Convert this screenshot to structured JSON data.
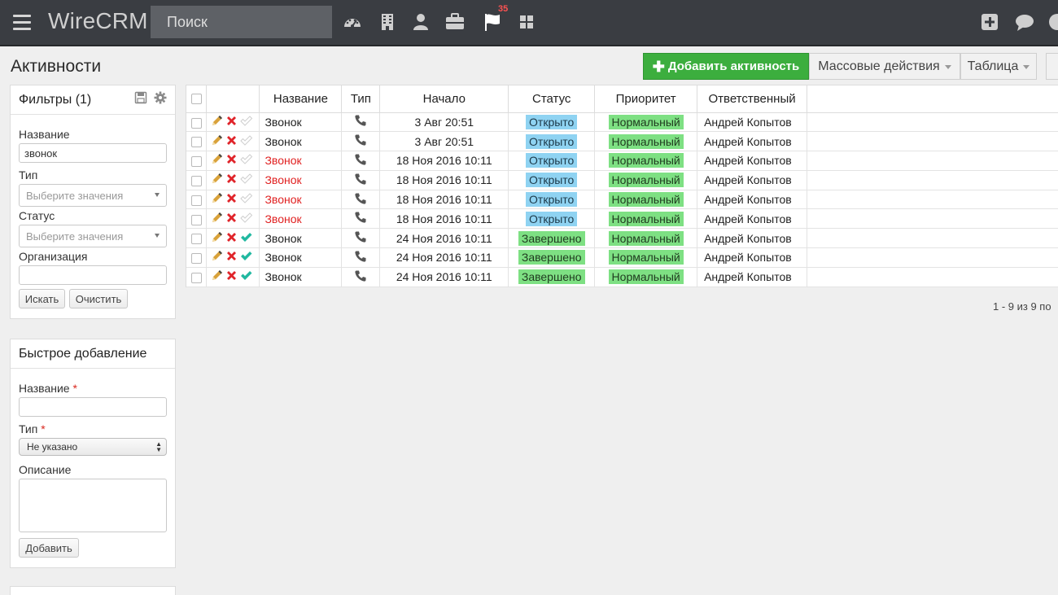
{
  "app": {
    "brand": "WireCRM",
    "search_placeholder": "Поиск"
  },
  "nav": {
    "icons": [
      "dashboard-icon",
      "building-icon",
      "person-icon",
      "briefcase-icon",
      "flag-icon",
      "grid-icon",
      "plus-square-icon",
      "chat-icon"
    ],
    "flag_badge": "35"
  },
  "page": {
    "title": "Активности",
    "add_button": "Добавить активность",
    "mass_actions": "Массовые действия",
    "view_table": "Таблица"
  },
  "filters": {
    "title": "Фильтры (1)",
    "name_label": "Название",
    "name_value": "звонок",
    "type_label": "Тип",
    "type_placeholder": "Выберите значения",
    "status_label": "Статус",
    "status_placeholder": "Выберите значения",
    "org_label": "Организация",
    "search_button": "Искать",
    "clear_button": "Очистить"
  },
  "quick_add": {
    "title": "Быстрое добавление",
    "name_label": "Название",
    "type_label": "Тип",
    "type_value": "Не указано",
    "desc_label": "Описание",
    "add_button": "Добавить",
    "required_mark": "*"
  },
  "table": {
    "columns": [
      "Название",
      "Тип",
      "Начало",
      "Статус",
      "Приоритет",
      "Ответственный"
    ],
    "rows": [
      {
        "name": "Звонок",
        "overdue": false,
        "start": "3 Авг 20:51",
        "status": "Открыто",
        "priority": "Нормальный",
        "owner": "Андрей Копытов",
        "done": false
      },
      {
        "name": "Звонок",
        "overdue": false,
        "start": "3 Авг 20:51",
        "status": "Открыто",
        "priority": "Нормальный",
        "owner": "Андрей Копытов",
        "done": false
      },
      {
        "name": "Звонок",
        "overdue": true,
        "start": "18 Ноя 2016 10:11",
        "status": "Открыто",
        "priority": "Нормальный",
        "owner": "Андрей Копытов",
        "done": false
      },
      {
        "name": "Звонок",
        "overdue": true,
        "start": "18 Ноя 2016 10:11",
        "status": "Открыто",
        "priority": "Нормальный",
        "owner": "Андрей Копытов",
        "done": false
      },
      {
        "name": "Звонок",
        "overdue": true,
        "start": "18 Ноя 2016 10:11",
        "status": "Открыто",
        "priority": "Нормальный",
        "owner": "Андрей Копытов",
        "done": false
      },
      {
        "name": "Звонок",
        "overdue": true,
        "start": "18 Ноя 2016 10:11",
        "status": "Открыто",
        "priority": "Нормальный",
        "owner": "Андрей Копытов",
        "done": false
      },
      {
        "name": "Звонок",
        "overdue": false,
        "start": "24 Ноя 2016 10:11",
        "status": "Завершено",
        "priority": "Нормальный",
        "owner": "Андрей Копытов",
        "done": true
      },
      {
        "name": "Звонок",
        "overdue": false,
        "start": "24 Ноя 2016 10:11",
        "status": "Завершено",
        "priority": "Нормальный",
        "owner": "Андрей Копытов",
        "done": true
      },
      {
        "name": "Звонок",
        "overdue": false,
        "start": "24 Ноя 2016 10:11",
        "status": "Завершено",
        "priority": "Нормальный",
        "owner": "Андрей Копытов",
        "done": true
      }
    ],
    "pager": "1 - 9 из 9 по"
  },
  "colors": {
    "accent_green": "#3cae3e",
    "overdue_red": "#e02020",
    "open_badge": "#8fd3f2",
    "done_badge": "#7ee083",
    "topbar": "#3a3d42"
  }
}
